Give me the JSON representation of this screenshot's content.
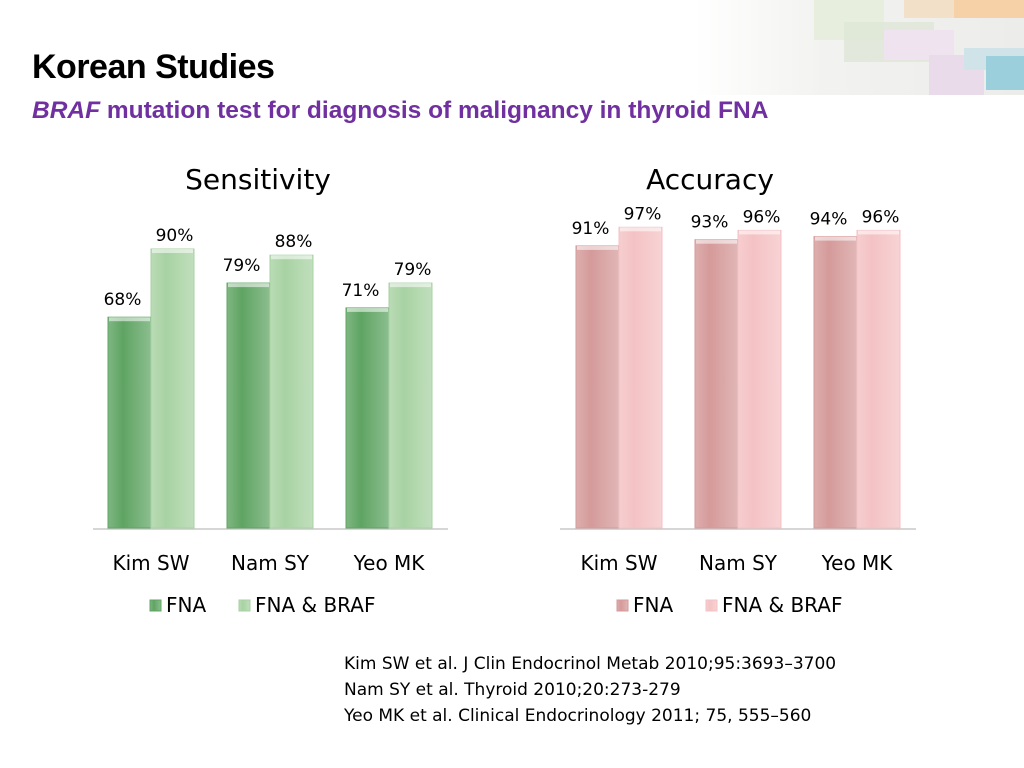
{
  "slide": {
    "title": "Korean Studies",
    "subtitle_italic": "BRAF",
    "subtitle_rest": " mutation test for diagnosis of malignancy in thyroid FNA"
  },
  "colors": {
    "title": "#000000",
    "subtitle": "#7030a0",
    "sens_fna": "#5fa463",
    "sens_braf": "#a8d2a3",
    "acc_fna": "#d59a9a",
    "acc_braf": "#f4c2c4"
  },
  "chart_data": [
    {
      "type": "bar",
      "title": "Sensitivity",
      "categories": [
        "Kim SW",
        "Nam SY",
        "Yeo MK"
      ],
      "series": [
        {
          "name": "FNA",
          "values": [
            68,
            79,
            71
          ],
          "labels": [
            "68%",
            "79%",
            "71%"
          ]
        },
        {
          "name": "FNA & BRAF",
          "values": [
            90,
            88,
            79
          ],
          "labels": [
            "90%",
            "88%",
            "79%"
          ]
        }
      ],
      "ylim": [
        0,
        100
      ],
      "grid": false,
      "legend": "bottom"
    },
    {
      "type": "bar",
      "title": "Accuracy",
      "categories": [
        "Kim SW",
        "Nam SY",
        "Yeo MK"
      ],
      "series": [
        {
          "name": "FNA",
          "values": [
            91,
            93,
            94
          ],
          "labels": [
            "91%",
            "93%",
            "94%"
          ]
        },
        {
          "name": "FNA & BRAF",
          "values": [
            97,
            96,
            96
          ],
          "labels": [
            "97%",
            "96%",
            "96%"
          ]
        }
      ],
      "ylim": [
        0,
        100
      ],
      "grid": false,
      "legend": "bottom"
    }
  ],
  "references": [
    "Kim SW et al. J Clin Endocrinol Metab 2010;95:3693–3700",
    "Nam SY et al. Thyroid 2010;20:273-279",
    "Yeo MK et al. Clinical Endocrinology  2011; 75, 555–560"
  ]
}
